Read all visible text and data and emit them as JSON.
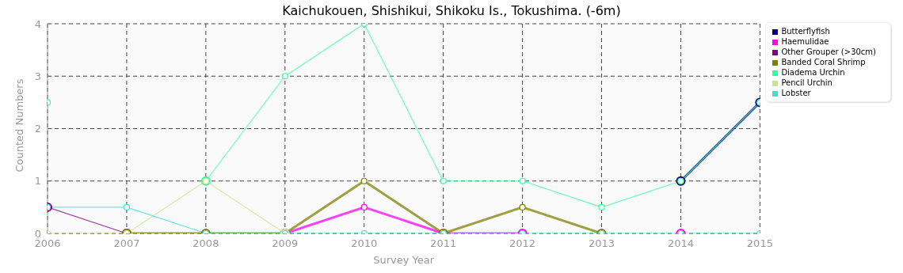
{
  "chart_data": {
    "type": "line",
    "title": "Kaichukouen, Shishikui, Shikoku Is., Tokushima. (-6m)",
    "xlabel": "Survey Year",
    "ylabel": "Counted Numbers",
    "x": [
      2006,
      2007,
      2008,
      2009,
      2010,
      2011,
      2012,
      2013,
      2014,
      2015
    ],
    "xlim": [
      2006,
      2015
    ],
    "xticks": [
      2006,
      2007,
      2008,
      2009,
      2010,
      2011,
      2012,
      2013,
      2014,
      2015
    ],
    "ylim": [
      0,
      4
    ],
    "yticks": [
      0,
      1,
      2,
      3,
      4
    ],
    "grid": true,
    "legend": "top right",
    "marker": "circle",
    "line_style": "solid",
    "series": [
      {
        "name": "Butterflyfish",
        "color": "#000080",
        "values": [
          null,
          null,
          null,
          null,
          null,
          null,
          null,
          null,
          1,
          2.5
        ]
      },
      {
        "name": "Haemulidae",
        "color": "#ff00ff",
        "values": [
          null,
          null,
          null,
          0,
          0.5,
          0,
          0,
          null,
          0,
          null
        ]
      },
      {
        "name": "Other Grouper (>30cm)",
        "color": "#800080",
        "values": [
          0.5,
          0,
          null,
          null,
          null,
          null,
          null,
          null,
          null,
          null
        ]
      },
      {
        "name": "Banded Coral Shrimp",
        "color": "#808000",
        "values": [
          null,
          0,
          0,
          0,
          1,
          0,
          0.5,
          0,
          null,
          null
        ]
      },
      {
        "name": "Diadema Urchin",
        "color": "#33ff99",
        "values": [
          2.5,
          null,
          1,
          3,
          4,
          1,
          1,
          0.5,
          1,
          2.5
        ]
      },
      {
        "name": "Pencil Urchin",
        "color": "#c8e68c",
        "values": [
          0,
          0,
          1,
          0,
          null,
          null,
          null,
          null,
          null,
          null
        ]
      },
      {
        "name": "Lobster",
        "color": "#40e0d0",
        "values": [
          0.5,
          0.5,
          0,
          0,
          0,
          0,
          0,
          0,
          0,
          0
        ]
      }
    ]
  }
}
